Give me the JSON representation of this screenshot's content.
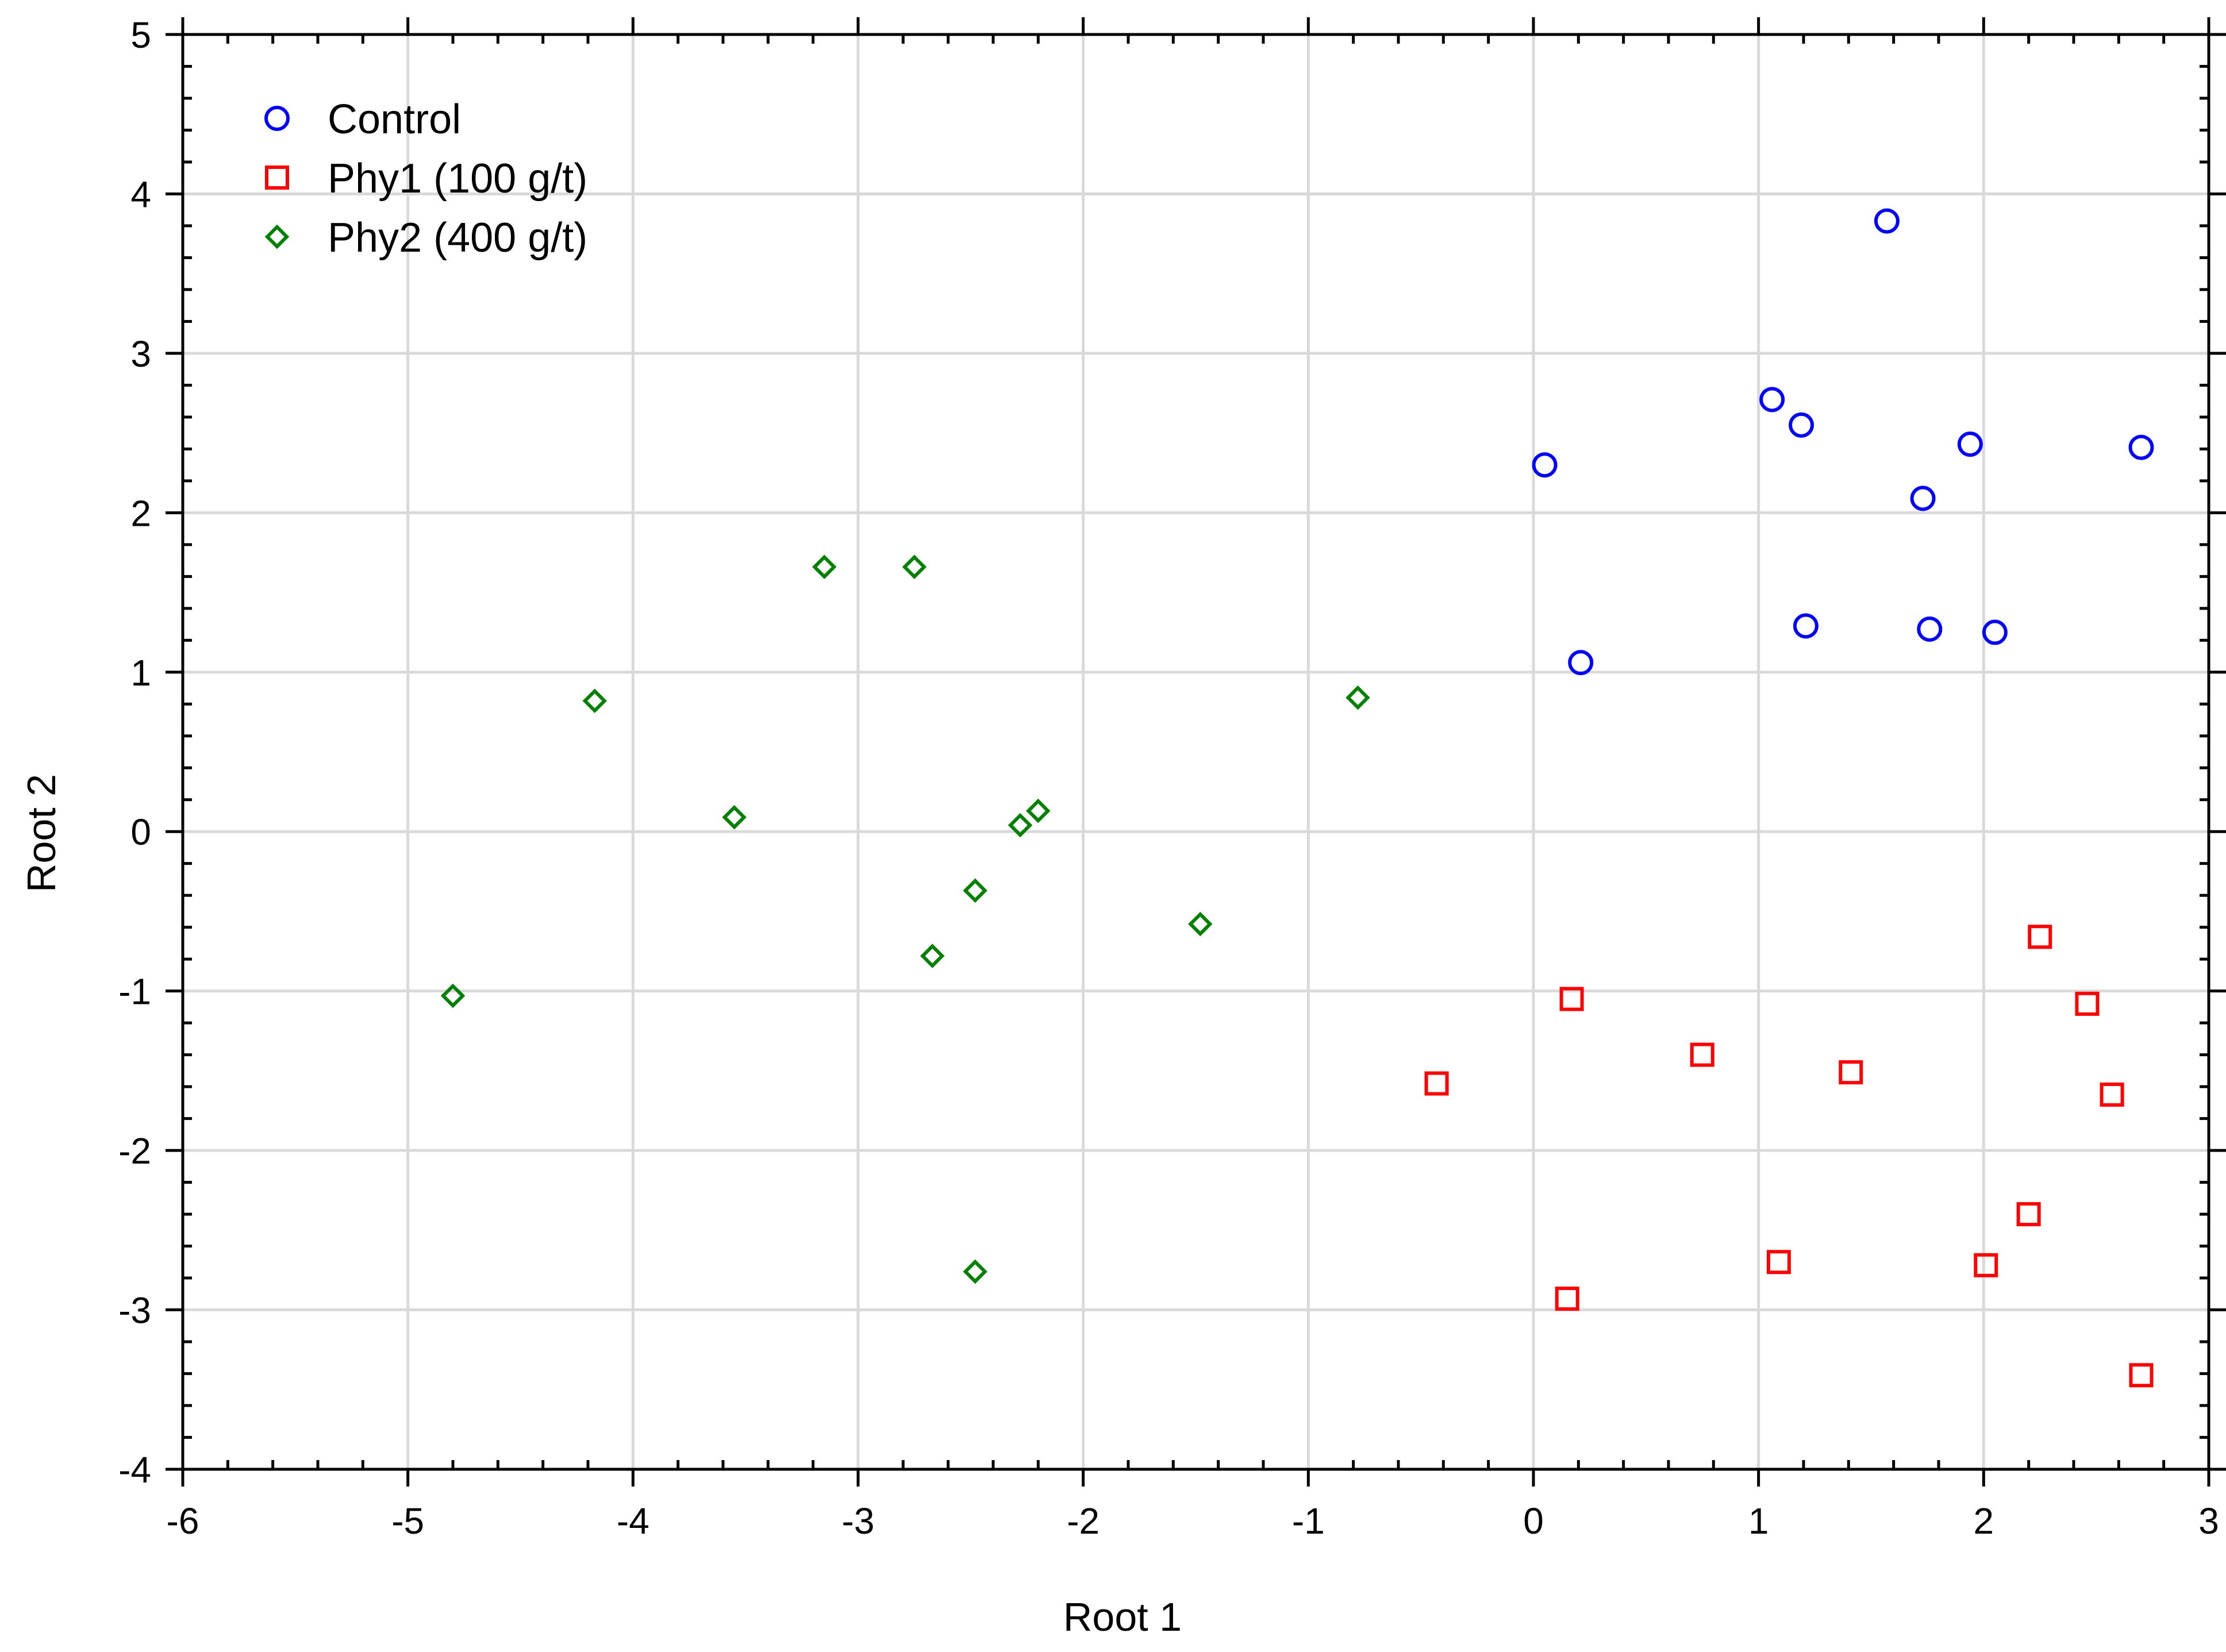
{
  "chart_data": {
    "type": "scatter",
    "title": "",
    "xlabel": "Root 1",
    "ylabel": "Root 2",
    "xlim": [
      -6,
      3
    ],
    "ylim": [
      -4,
      5
    ],
    "x_ticks": [
      -6,
      -5,
      -4,
      -3,
      -2,
      -1,
      0,
      1,
      2,
      3
    ],
    "y_ticks": [
      -4,
      -3,
      -2,
      -1,
      0,
      1,
      2,
      3,
      4,
      5
    ],
    "grid": true,
    "legend_position": "top-left",
    "series": [
      {
        "name": "Control",
        "marker": "circle",
        "color": "#0000ff",
        "points": [
          [
            1.57,
            3.83
          ],
          [
            1.06,
            2.71
          ],
          [
            1.19,
            2.55
          ],
          [
            1.94,
            2.43
          ],
          [
            2.7,
            2.41
          ],
          [
            0.05,
            2.3
          ],
          [
            1.73,
            2.09
          ],
          [
            1.21,
            1.29
          ],
          [
            1.76,
            1.27
          ],
          [
            2.05,
            1.25
          ],
          [
            0.21,
            1.06
          ]
        ]
      },
      {
        "name": "Phy1 (100 g/t)",
        "marker": "square",
        "color": "#ff0000",
        "points": [
          [
            2.25,
            -0.66
          ],
          [
            2.46,
            -1.08
          ],
          [
            0.17,
            -1.05
          ],
          [
            0.75,
            -1.4
          ],
          [
            1.41,
            -1.51
          ],
          [
            2.57,
            -1.65
          ],
          [
            -0.43,
            -1.58
          ],
          [
            2.2,
            -2.4
          ],
          [
            1.09,
            -2.7
          ],
          [
            2.01,
            -2.72
          ],
          [
            0.15,
            -2.93
          ],
          [
            2.7,
            -3.41
          ]
        ]
      },
      {
        "name": "Phy2 (400 g/t)",
        "marker": "diamond",
        "color": "#008000",
        "points": [
          [
            -3.15,
            1.66
          ],
          [
            -2.75,
            1.66
          ],
          [
            -4.17,
            0.82
          ],
          [
            -0.78,
            0.84
          ],
          [
            -3.55,
            0.09
          ],
          [
            -2.28,
            0.04
          ],
          [
            -2.2,
            0.13
          ],
          [
            -2.48,
            -0.37
          ],
          [
            -2.67,
            -0.78
          ],
          [
            -1.48,
            -0.58
          ],
          [
            -4.8,
            -1.03
          ],
          [
            -2.48,
            -2.76
          ]
        ]
      }
    ]
  }
}
